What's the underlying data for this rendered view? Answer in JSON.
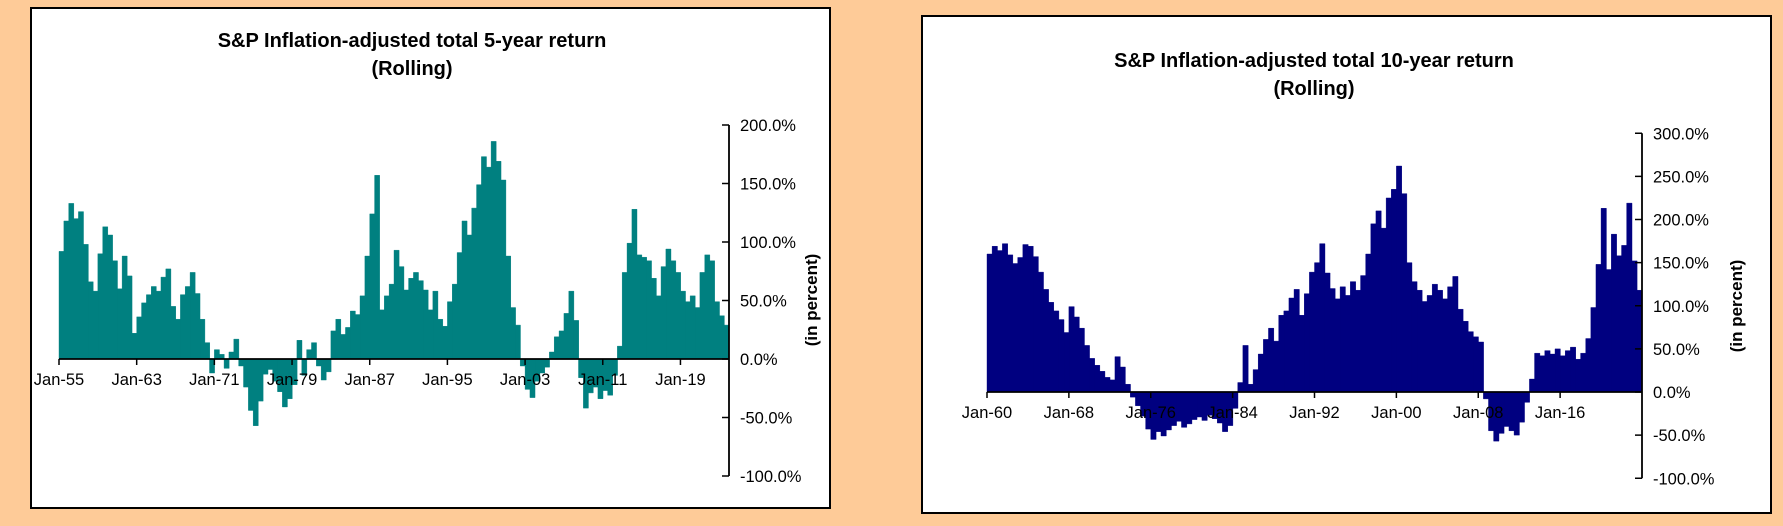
{
  "page": {
    "background_color": "#fecb98",
    "panel_background": "#ffffff",
    "panel_border_color": "#000000",
    "text_color": "#000000"
  },
  "chart_data": [
    {
      "type": "bar",
      "title_line1": "S&P Inflation-adjusted total 5-year return",
      "title_line2": "(Rolling)",
      "y_axis_title": "(in percent)",
      "bar_color": "#008080",
      "x_start_year": 1955.0,
      "x_step_years": 0.5,
      "x_tick_years": [
        1955,
        1963,
        1971,
        1979,
        1987,
        1995,
        2003,
        2011,
        2019
      ],
      "x_tick_labels": [
        "Jan-55",
        "Jan-63",
        "Jan-71",
        "Jan-79",
        "Jan-87",
        "Jan-95",
        "Jan-03",
        "Jan-11",
        "Jan-19"
      ],
      "y_tick_values": [
        200,
        150,
        100,
        50,
        0,
        -50,
        -100
      ],
      "y_tick_labels": [
        "200.0%",
        "150.0%",
        "100.0%",
        "50.0%",
        "0.0%",
        "-50.0%",
        "-100.0%"
      ],
      "ylim": [
        -100,
        200
      ],
      "values_percent": [
        92,
        118,
        133,
        120,
        126,
        98,
        66,
        58,
        90,
        113,
        106,
        84,
        60,
        88,
        71,
        22,
        36,
        48,
        55,
        62,
        58,
        70,
        77,
        45,
        34,
        55,
        62,
        74,
        56,
        34,
        14,
        -12,
        8,
        4,
        -8,
        6,
        17,
        -6,
        -24,
        -44,
        -57,
        -36,
        -13,
        -9,
        -19,
        -28,
        -41,
        -34,
        -22,
        16,
        -14,
        8,
        14,
        -6,
        -18,
        -11,
        24,
        34,
        21,
        27,
        41,
        38,
        54,
        88,
        124,
        157,
        42,
        54,
        64,
        93,
        79,
        59,
        69,
        74,
        67,
        59,
        42,
        58,
        34,
        28,
        49,
        64,
        91,
        118,
        106,
        129,
        149,
        173,
        164,
        186,
        169,
        153,
        88,
        44,
        29,
        -6,
        -26,
        -33,
        -19,
        -12,
        -7,
        6,
        19,
        24,
        39,
        58,
        33,
        -16,
        -42,
        -29,
        -24,
        -34,
        -27,
        -31,
        -14,
        11,
        74,
        99,
        128,
        89,
        87,
        84,
        69,
        54,
        79,
        94,
        84,
        74,
        58,
        49,
        54,
        44,
        74,
        89,
        84,
        49,
        37,
        29
      ]
    },
    {
      "type": "bar",
      "title_line1": "S&P Inflation-adjusted total 10-year return",
      "title_line2": "(Rolling)",
      "y_axis_title": "(in percent)",
      "bar_color": "#000080",
      "x_start_year": 1960.0,
      "x_step_years": 0.5,
      "x_tick_years": [
        1960,
        1968,
        1976,
        1984,
        1992,
        2000,
        2008,
        2016
      ],
      "x_tick_labels": [
        "Jan-60",
        "Jan-68",
        "Jan-76",
        "Jan-84",
        "Jan-92",
        "Jan-00",
        "Jan-08",
        "Jan-16"
      ],
      "y_tick_values": [
        300,
        250,
        200,
        150,
        100,
        50,
        0,
        -50,
        -100
      ],
      "y_tick_labels": [
        "300.0%",
        "250.0%",
        "200.0%",
        "150.0%",
        "100.0%",
        "50.0%",
        "0.0%",
        "-50.0%",
        "-100.0%"
      ],
      "ylim": [
        -100,
        300
      ],
      "values_percent": [
        160,
        169,
        164,
        172,
        159,
        149,
        156,
        171,
        169,
        157,
        139,
        119,
        104,
        94,
        84,
        69,
        99,
        87,
        74,
        54,
        39,
        31,
        24,
        17,
        14,
        41,
        29,
        9,
        -6,
        -16,
        -28,
        -43,
        -55,
        -46,
        -51,
        -44,
        -39,
        -34,
        -41,
        -37,
        -32,
        -29,
        -33,
        -27,
        -31,
        -36,
        -46,
        -39,
        -19,
        11,
        54,
        9,
        26,
        44,
        61,
        74,
        59,
        89,
        94,
        109,
        119,
        89,
        114,
        139,
        150,
        172,
        138,
        120,
        108,
        122,
        112,
        128,
        118,
        135,
        160,
        195,
        210,
        190,
        225,
        235,
        262,
        230,
        150,
        128,
        118,
        105,
        112,
        125,
        118,
        108,
        122,
        134,
        96,
        82,
        70,
        64,
        58,
        -8,
        -45,
        -57,
        -48,
        -40,
        -45,
        -50,
        -35,
        -12,
        15,
        45,
        42,
        48,
        44,
        50,
        42,
        48,
        52,
        38,
        45,
        62,
        98,
        148,
        213,
        142,
        183,
        158,
        170,
        219,
        152,
        118
      ]
    }
  ]
}
